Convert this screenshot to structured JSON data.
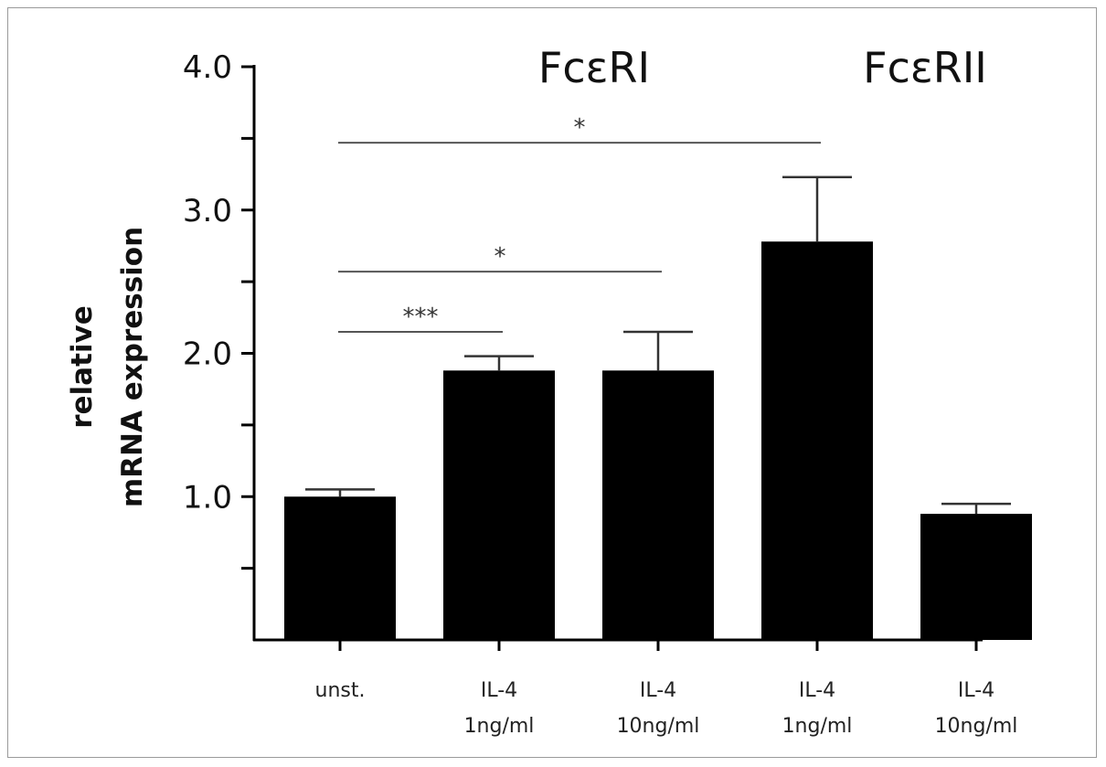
{
  "chart_data": {
    "type": "bar",
    "categories": [
      [
        "unst."
      ],
      [
        "IL-4",
        "1ng/ml"
      ],
      [
        "IL-4",
        "10ng/ml"
      ],
      [
        "IL-4",
        "1ng/ml"
      ],
      [
        "IL-4",
        "10ng/ml"
      ]
    ],
    "values": [
      1.0,
      1.88,
      1.88,
      2.78,
      0.88
    ],
    "errors": [
      0.05,
      0.1,
      0.27,
      0.45,
      0.07
    ],
    "groups": [
      {
        "label": "FcεRI",
        "categories": [
          0,
          1,
          2
        ]
      },
      {
        "label": "FcεRII",
        "categories": [
          3,
          4
        ]
      }
    ],
    "ylabel": [
      "relative",
      "mRNA expression"
    ],
    "ylim": [
      0,
      4.0
    ],
    "yticks": [
      1.0,
      2.0,
      3.0,
      4.0
    ],
    "ytick_labels": [
      "1.0",
      "2.0",
      "3.0",
      "4.0"
    ],
    "yminor_ticks": [
      0.5,
      1.5,
      2.5,
      3.5
    ],
    "bar_color": "#000000",
    "significance": [
      {
        "from": 0,
        "to": 1,
        "label": "***",
        "y": 2.15
      },
      {
        "from": 0,
        "to": 2,
        "label": "*",
        "y": 2.57
      },
      {
        "from": 0,
        "to": 3,
        "label": "*",
        "y": 3.47
      }
    ],
    "grid": false
  }
}
